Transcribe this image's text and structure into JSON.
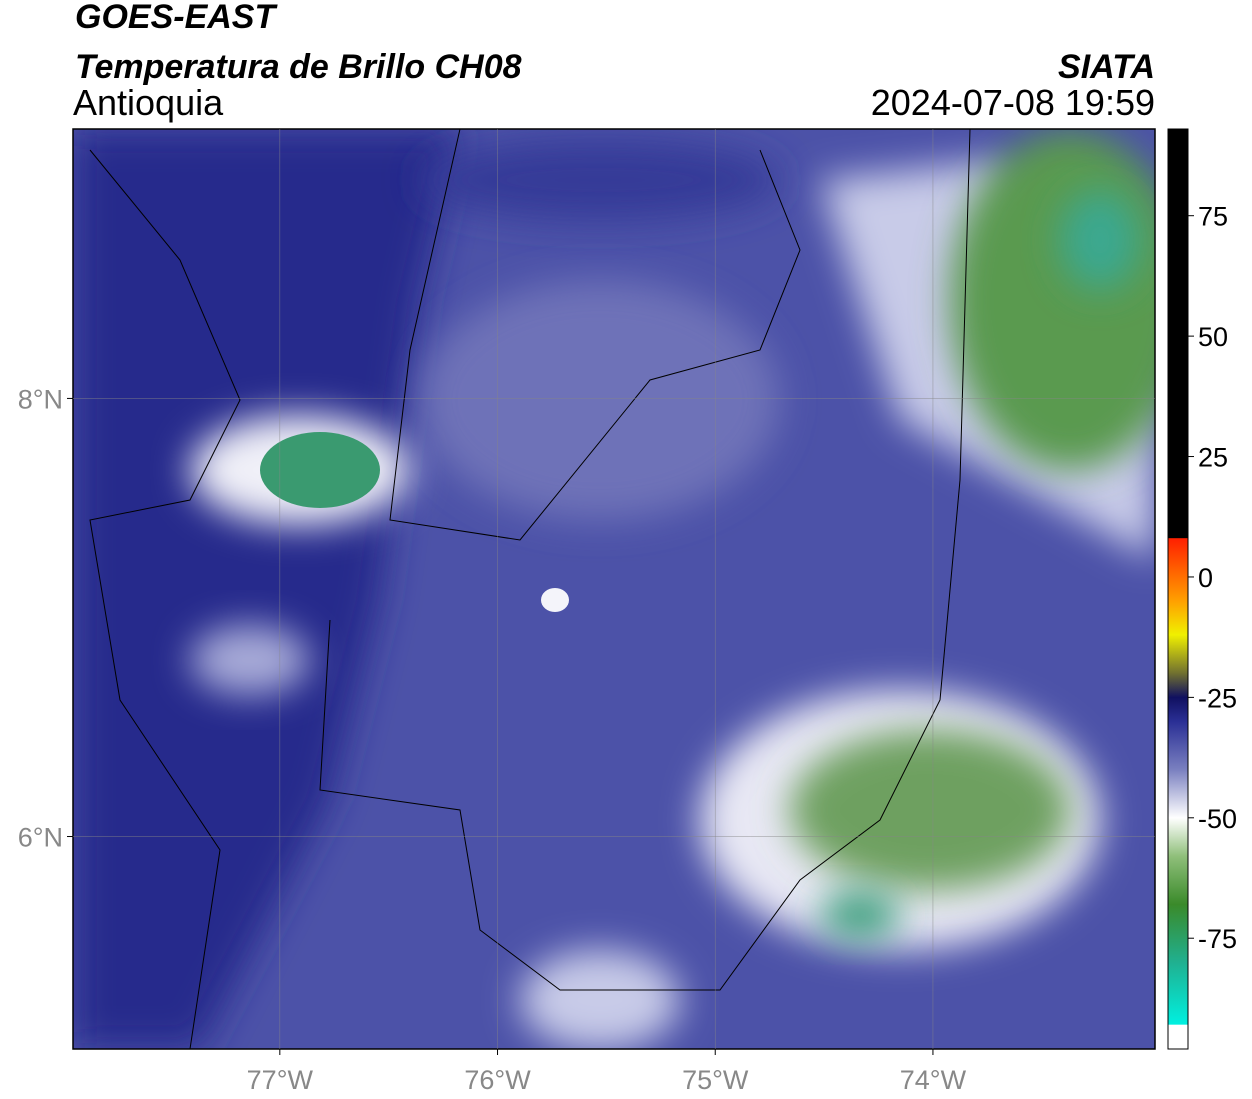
{
  "header": {
    "title": "GOES-EAST",
    "subtitle": "Temperatura de Brillo CH08",
    "region": "Antioquia",
    "source": "SIATA",
    "datetime": "2024-07-08 19:59"
  },
  "map": {
    "xlim": [
      -77.95,
      -72.98
    ],
    "ylim": [
      5.03,
      9.23
    ],
    "xticks": [
      {
        "value": -77,
        "label": "77°W"
      },
      {
        "value": -76,
        "label": "76°W"
      },
      {
        "value": -75,
        "label": "75°W"
      },
      {
        "value": -74,
        "label": "74°W"
      }
    ],
    "yticks": [
      {
        "value": 8,
        "label": "8°N"
      },
      {
        "value": 6,
        "label": "6°N"
      }
    ],
    "grid": true
  },
  "colorbar": {
    "lim": [
      -98,
      93
    ],
    "ticks": [
      75,
      50,
      25,
      0,
      -25,
      -50,
      -75
    ],
    "stops": [
      {
        "value": -98,
        "color": "#ffffff"
      },
      {
        "value": -93,
        "color": "#ffffff"
      },
      {
        "value": -92.9,
        "color": "#00f0e0"
      },
      {
        "value": -80,
        "color": "#20b090"
      },
      {
        "value": -68,
        "color": "#3a8a2a"
      },
      {
        "value": -58,
        "color": "#8fbf7a"
      },
      {
        "value": -50,
        "color": "#ffffff"
      },
      {
        "value": -40,
        "color": "#7a80c0"
      },
      {
        "value": -30,
        "color": "#2a2f95"
      },
      {
        "value": -25,
        "color": "#101060"
      },
      {
        "value": -20,
        "color": "#707030"
      },
      {
        "value": -12,
        "color": "#f0f000"
      },
      {
        "value": -5,
        "color": "#ffa000"
      },
      {
        "value": 8,
        "color": "#ff2000"
      },
      {
        "value": 8.1,
        "color": "#000000"
      },
      {
        "value": 93,
        "color": "#000000"
      }
    ]
  }
}
